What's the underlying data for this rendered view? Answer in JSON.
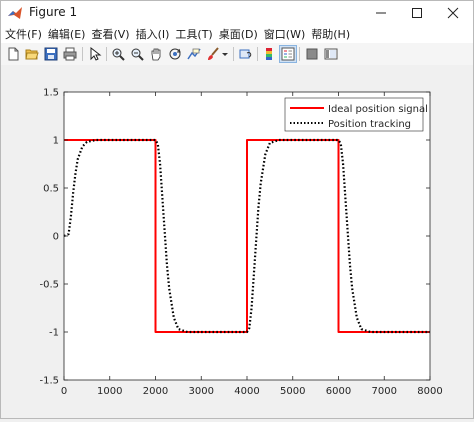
{
  "window": {
    "title": "Figure 1",
    "controls": {
      "minimize": "minimize-icon",
      "maximize": "maximize-icon",
      "close": "close-icon"
    }
  },
  "menu": [
    "文件(F)",
    "编辑(E)",
    "查看(V)",
    "插入(I)",
    "工具(T)",
    "桌面(D)",
    "窗口(W)",
    "帮助(H)"
  ],
  "toolbar": [
    "new-figure-icon",
    "open-icon",
    "save-icon",
    "print-icon",
    "pointer-icon",
    "zoom-in-icon",
    "zoom-out-icon",
    "pan-icon",
    "rotate-3d-icon",
    "data-cursor-icon",
    "brush-icon",
    "link-icon",
    "colorbar-icon",
    "legend-icon",
    "hide-plot-tools-icon",
    "show-plot-tools-icon"
  ],
  "chart_data": {
    "type": "line",
    "title": "",
    "xlabel": "",
    "ylabel": "",
    "xlim": [
      0,
      8000
    ],
    "ylim": [
      -1.5,
      1.5
    ],
    "xticks": [
      "0",
      "1000",
      "2000",
      "3000",
      "4000",
      "5000",
      "6000",
      "7000",
      "8000"
    ],
    "yticks": [
      "1.5",
      "1",
      "0.5",
      "0",
      "-0.5",
      "-1",
      "-1.5"
    ],
    "xtick_values": [
      0,
      1000,
      2000,
      3000,
      4000,
      5000,
      6000,
      7000,
      8000
    ],
    "ytick_values": [
      1.5,
      1,
      0.5,
      0,
      -0.5,
      -1,
      -1.5
    ],
    "grid": false,
    "legend_position": "top-right",
    "series": [
      {
        "name": "Ideal position signal",
        "color": "#ff0000",
        "style": "solid",
        "x": [
          0,
          2000,
          2000,
          4000,
          4000,
          6000,
          6000,
          8000
        ],
        "y": [
          1,
          1,
          -1,
          -1,
          1,
          1,
          -1,
          -1
        ]
      },
      {
        "name": "Position tracking",
        "color": "#000000",
        "style": "dotted",
        "x": [
          0,
          100,
          150,
          200,
          250,
          300,
          400,
          500,
          700,
          1000,
          2000,
          2050,
          2100,
          2150,
          2200,
          2250,
          2300,
          2400,
          2500,
          2700,
          3000,
          4000,
          4050,
          4100,
          4150,
          4200,
          4250,
          4300,
          4400,
          4500,
          4700,
          5000,
          6000,
          6050,
          6100,
          6150,
          6200,
          6250,
          6300,
          6400,
          6500,
          6700,
          7000,
          8000
        ],
        "y": [
          0,
          0.02,
          0.2,
          0.45,
          0.65,
          0.8,
          0.93,
          0.98,
          1,
          1,
          1,
          0.96,
          0.75,
          0.4,
          0.05,
          -0.3,
          -0.55,
          -0.85,
          -0.97,
          -1,
          -1,
          -1,
          -0.96,
          -0.75,
          -0.4,
          -0.05,
          0.3,
          0.55,
          0.85,
          0.97,
          1,
          1,
          1,
          0.96,
          0.75,
          0.4,
          0.05,
          -0.3,
          -0.55,
          -0.85,
          -0.97,
          -1,
          -1,
          -1
        ]
      }
    ]
  }
}
